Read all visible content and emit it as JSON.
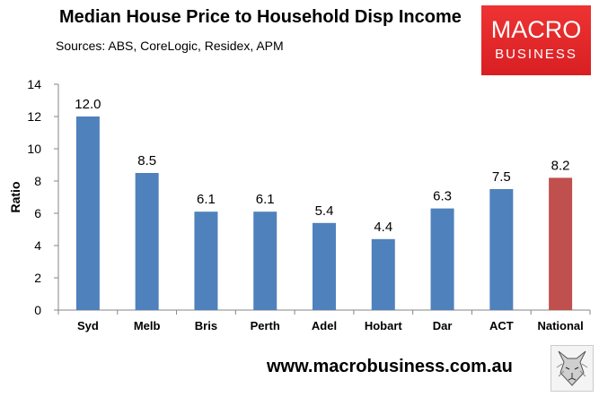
{
  "header": {
    "title": "Median House Price to Household Disp Income",
    "subtitle": "Sources: ABS, CoreLogic, Residex, APM"
  },
  "logo": {
    "line1": "MACRO",
    "line2": "BUSINESS"
  },
  "footer": {
    "url": "www.macrobusiness.com.au"
  },
  "colors": {
    "bar_default": "#4f81bd",
    "bar_highlight": "#c0504d",
    "logo_red": "#e8262a"
  },
  "chart_data": {
    "type": "bar",
    "title": "Median House Price to Household Disp Income",
    "subtitle": "Sources: ABS, CoreLogic, Residex, APM",
    "xlabel": "",
    "ylabel": "Ratio",
    "ylim": [
      0,
      14
    ],
    "yticks": [
      0,
      2,
      4,
      6,
      8,
      10,
      12,
      14
    ],
    "grid": false,
    "legend": "none",
    "categories": [
      "Syd",
      "Melb",
      "Bris",
      "Perth",
      "Adel",
      "Hobart",
      "Dar",
      "ACT",
      "National"
    ],
    "values": [
      12.0,
      8.5,
      6.1,
      6.1,
      5.4,
      4.4,
      6.3,
      7.5,
      8.2
    ],
    "value_labels": [
      "12.0",
      "8.5",
      "6.1",
      "6.1",
      "5.4",
      "4.4",
      "6.3",
      "7.5",
      "8.2"
    ],
    "highlight_category": "National"
  }
}
